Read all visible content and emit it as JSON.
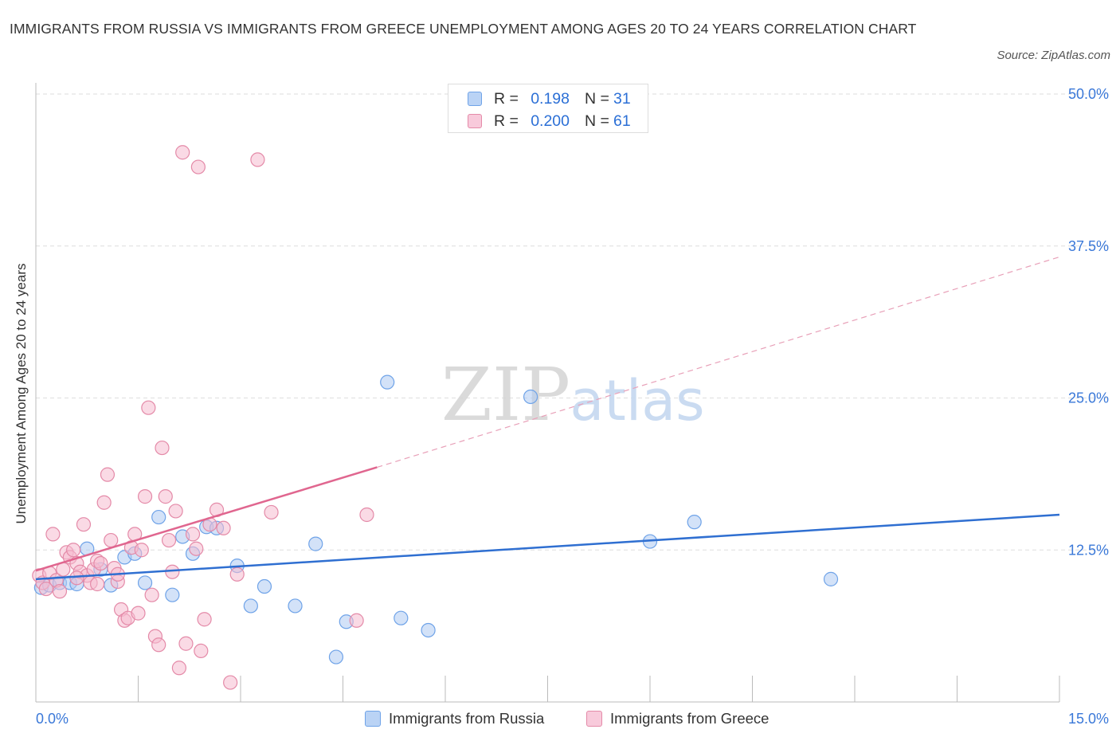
{
  "header": {
    "title": "IMMIGRANTS FROM RUSSIA VS IMMIGRANTS FROM GREECE UNEMPLOYMENT AMONG AGES 20 TO 24 YEARS CORRELATION CHART",
    "source": "Source: ZipAtlas.com"
  },
  "watermark": {
    "zip": "ZIP",
    "atlas": "atlas"
  },
  "stats": {
    "russia": {
      "r_label": "R =",
      "r_value": "0.198",
      "n_label": "N =",
      "n_value": "31"
    },
    "greece": {
      "r_label": "R =",
      "r_value": "0.200",
      "n_label": "N =",
      "n_value": "61"
    }
  },
  "chart_data": {
    "type": "scatter",
    "title": "IMMIGRANTS FROM RUSSIA VS IMMIGRANTS FROM GREECE UNEMPLOYMENT AMONG AGES 20 TO 24 YEARS CORRELATION CHART",
    "xlabel": "",
    "ylabel": "Unemployment Among Ages 20 to 24 years",
    "xlim": [
      0,
      15
    ],
    "ylim": [
      0,
      50
    ],
    "x_tick_labels": [
      "0.0%",
      "15.0%"
    ],
    "y_ticks": [
      12.5,
      25,
      37.5,
      50
    ],
    "y_tick_labels": [
      "12.5%",
      "25.0%",
      "37.5%",
      "50.0%"
    ],
    "grid": true,
    "legend_position": "bottom",
    "series": [
      {
        "name": "Immigrants from Russia",
        "color": "#6fa3e8",
        "fill": "#aecbf2",
        "points": [
          [
            0.08,
            9.4
          ],
          [
            0.2,
            9.6
          ],
          [
            0.35,
            9.8
          ],
          [
            0.5,
            9.8
          ],
          [
            0.6,
            9.7
          ],
          [
            0.75,
            12.6
          ],
          [
            0.95,
            10.9
          ],
          [
            1.1,
            9.6
          ],
          [
            1.3,
            11.9
          ],
          [
            1.45,
            12.2
          ],
          [
            1.6,
            9.8
          ],
          [
            1.8,
            15.2
          ],
          [
            2.0,
            8.8
          ],
          [
            2.15,
            13.6
          ],
          [
            2.3,
            12.2
          ],
          [
            2.5,
            14.4
          ],
          [
            2.65,
            14.3
          ],
          [
            2.95,
            11.2
          ],
          [
            3.15,
            7.9
          ],
          [
            3.35,
            9.5
          ],
          [
            3.8,
            7.9
          ],
          [
            4.1,
            13.0
          ],
          [
            4.4,
            3.7
          ],
          [
            4.55,
            6.6
          ],
          [
            5.15,
            26.3
          ],
          [
            5.35,
            6.9
          ],
          [
            5.75,
            5.9
          ],
          [
            7.25,
            25.1
          ],
          [
            9.0,
            13.2
          ],
          [
            9.65,
            14.8
          ],
          [
            11.65,
            10.1
          ]
        ],
        "trend": {
          "x0": 0,
          "y0": 10.1,
          "x1": 15,
          "y1": 15.4
        }
      },
      {
        "name": "Immigrants from Greece",
        "color": "#e48aa8",
        "fill": "#f5bcd0",
        "points": [
          [
            0.05,
            10.4
          ],
          [
            0.1,
            9.8
          ],
          [
            0.15,
            9.3
          ],
          [
            0.2,
            10.6
          ],
          [
            0.25,
            13.8
          ],
          [
            0.3,
            10.0
          ],
          [
            0.35,
            9.1
          ],
          [
            0.4,
            10.9
          ],
          [
            0.45,
            12.3
          ],
          [
            0.5,
            11.9
          ],
          [
            0.55,
            12.5
          ],
          [
            0.6,
            11.4
          ],
          [
            0.65,
            10.7
          ],
          [
            0.7,
            14.6
          ],
          [
            0.75,
            10.4
          ],
          [
            0.8,
            9.8
          ],
          [
            0.85,
            10.9
          ],
          [
            0.9,
            11.6
          ],
          [
            0.95,
            11.4
          ],
          [
            1.0,
            16.4
          ],
          [
            1.05,
            18.7
          ],
          [
            1.1,
            13.3
          ],
          [
            1.15,
            11.0
          ],
          [
            1.2,
            9.9
          ],
          [
            1.25,
            7.6
          ],
          [
            1.3,
            6.7
          ],
          [
            1.35,
            6.9
          ],
          [
            1.4,
            12.7
          ],
          [
            1.45,
            13.8
          ],
          [
            1.5,
            7.3
          ],
          [
            1.55,
            12.5
          ],
          [
            1.6,
            16.9
          ],
          [
            1.65,
            24.2
          ],
          [
            1.7,
            8.8
          ],
          [
            1.75,
            5.4
          ],
          [
            1.8,
            4.7
          ],
          [
            1.85,
            20.9
          ],
          [
            1.9,
            16.9
          ],
          [
            1.95,
            13.3
          ],
          [
            2.0,
            10.7
          ],
          [
            2.05,
            15.7
          ],
          [
            2.1,
            2.8
          ],
          [
            2.15,
            45.2
          ],
          [
            2.2,
            4.8
          ],
          [
            2.3,
            13.8
          ],
          [
            2.35,
            12.6
          ],
          [
            2.38,
            44.0
          ],
          [
            2.42,
            4.2
          ],
          [
            2.47,
            6.8
          ],
          [
            2.55,
            14.6
          ],
          [
            2.65,
            15.8
          ],
          [
            2.75,
            14.3
          ],
          [
            2.85,
            1.6
          ],
          [
            2.95,
            10.5
          ],
          [
            3.25,
            44.6
          ],
          [
            3.45,
            15.6
          ],
          [
            4.7,
            6.7
          ],
          [
            4.85,
            15.4
          ],
          [
            0.6,
            10.2
          ],
          [
            0.9,
            9.7
          ],
          [
            1.2,
            10.5
          ]
        ],
        "trend": {
          "x0": 0,
          "y0": 10.8,
          "x1": 5.0,
          "y1": 19.3
        },
        "trend_extension": {
          "x0": 5.0,
          "y0": 19.3,
          "x1": 15,
          "y1": 36.6
        }
      }
    ]
  },
  "legend": {
    "russia_label": "Immigrants from Russia",
    "greece_label": "Immigrants from Greece"
  }
}
